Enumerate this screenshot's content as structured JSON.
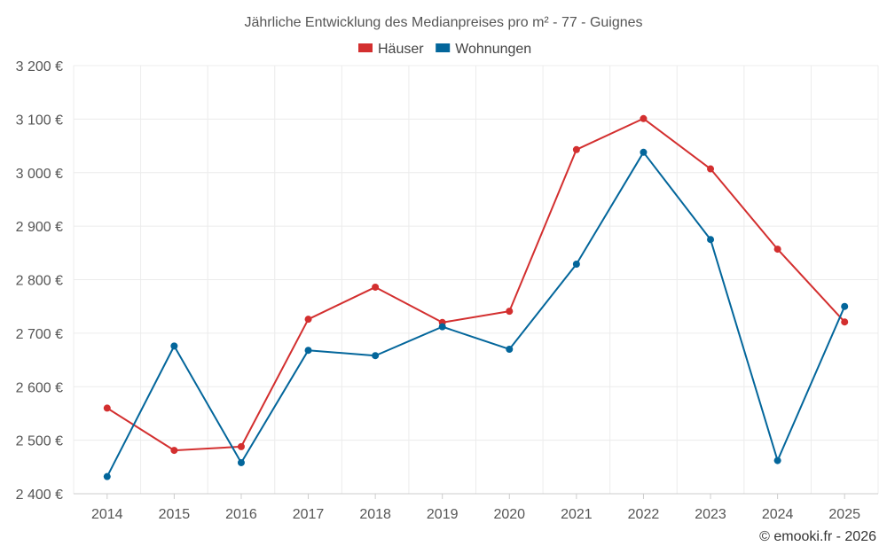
{
  "chart_data": {
    "type": "line",
    "title": "Jährliche Entwicklung des Medianpreises pro m² - 77 - Guignes",
    "categories": [
      "2014",
      "2015",
      "2016",
      "2017",
      "2018",
      "2019",
      "2020",
      "2021",
      "2022",
      "2023",
      "2024",
      "2025"
    ],
    "series": [
      {
        "name": "Häuser",
        "color": "#d32f2f",
        "values": [
          2560,
          2481,
          2488,
          2726,
          2786,
          2720,
          2741,
          3043,
          3101,
          3007,
          2857,
          2721
        ]
      },
      {
        "name": "Wohnungen",
        "color": "#03669b",
        "values": [
          2432,
          2676,
          2458,
          2668,
          2658,
          2712,
          2670,
          2829,
          3038,
          2875,
          2462,
          2750
        ]
      }
    ],
    "ylim": [
      2400,
      3200
    ],
    "yticks": [
      2400,
      2500,
      2600,
      2700,
      2800,
      2900,
      3000,
      3100,
      3200
    ],
    "ytick_labels": [
      "2 400 €",
      "2 500 €",
      "2 600 €",
      "2 700 €",
      "2 800 €",
      "2 900 €",
      "3 000 €",
      "3 100 €",
      "3 200 €"
    ],
    "legend_position": "top-center",
    "grid": true
  },
  "credit": "© emooki.fr - 2026"
}
